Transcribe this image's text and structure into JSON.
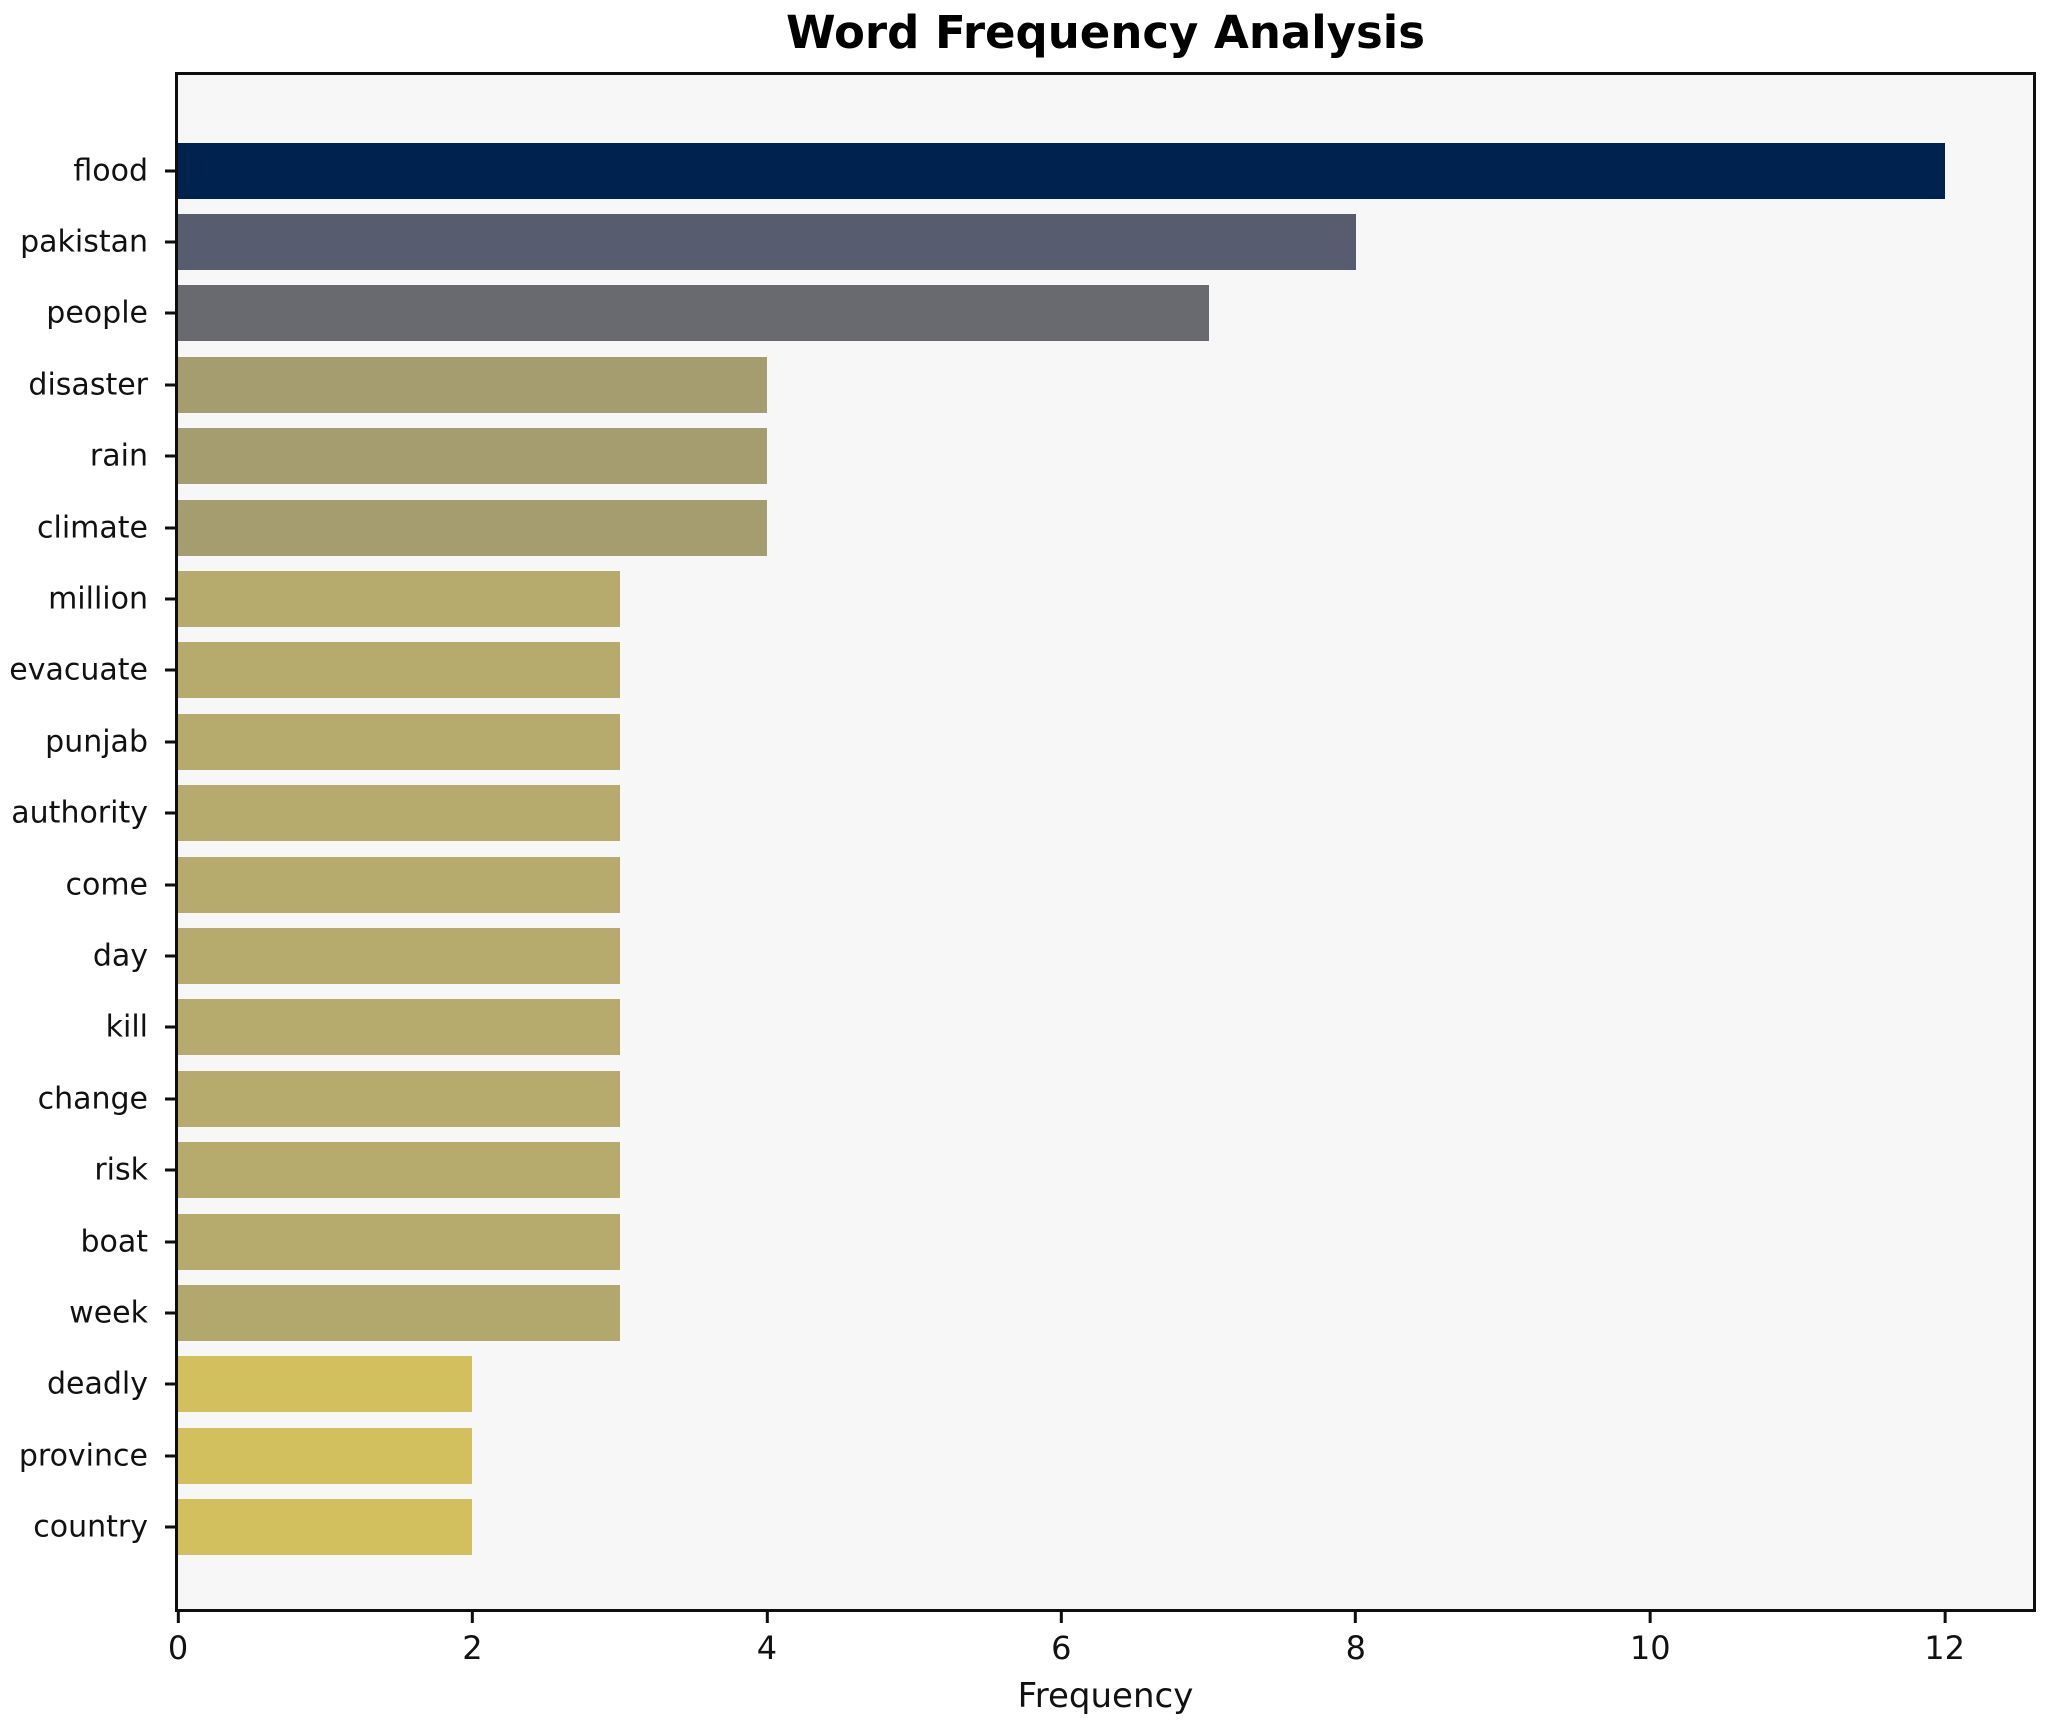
{
  "chart_data": {
    "type": "bar",
    "orientation": "horizontal",
    "title": "Word Frequency Analysis",
    "xlabel": "Frequency",
    "ylabel": "",
    "xlim": [
      0,
      12.6
    ],
    "x_ticks": [
      0,
      2,
      4,
      6,
      8,
      10,
      12
    ],
    "grid": false,
    "legend": false,
    "plot_background": "#f7f7f8",
    "figure_background": "#ffffff",
    "spine_color": "#0e0e0e",
    "categories": [
      "flood",
      "pakistan",
      "people",
      "disaster",
      "rain",
      "climate",
      "million",
      "evacuate",
      "punjab",
      "authority",
      "come",
      "day",
      "kill",
      "change",
      "risk",
      "boat",
      "week",
      "deadly",
      "province",
      "country"
    ],
    "values": [
      12,
      8,
      7,
      4,
      4,
      4,
      3,
      3,
      3,
      3,
      3,
      3,
      3,
      3,
      3,
      3,
      3,
      2,
      2,
      2
    ],
    "bar_colors": [
      "#00224e",
      "#575d6f",
      "#696a6f",
      "#a59d70",
      "#a59d70",
      "#a59d70",
      "#b6ab6c",
      "#b6ab6c",
      "#b6ab6c",
      "#b6ab6c",
      "#b6ab6c",
      "#b6ab6c",
      "#b6ab6c",
      "#b6ab6c",
      "#b6ab6c",
      "#b6ab6c",
      "#b2a76c",
      "#d2c05f",
      "#d2c05f",
      "#d2c05f"
    ]
  }
}
